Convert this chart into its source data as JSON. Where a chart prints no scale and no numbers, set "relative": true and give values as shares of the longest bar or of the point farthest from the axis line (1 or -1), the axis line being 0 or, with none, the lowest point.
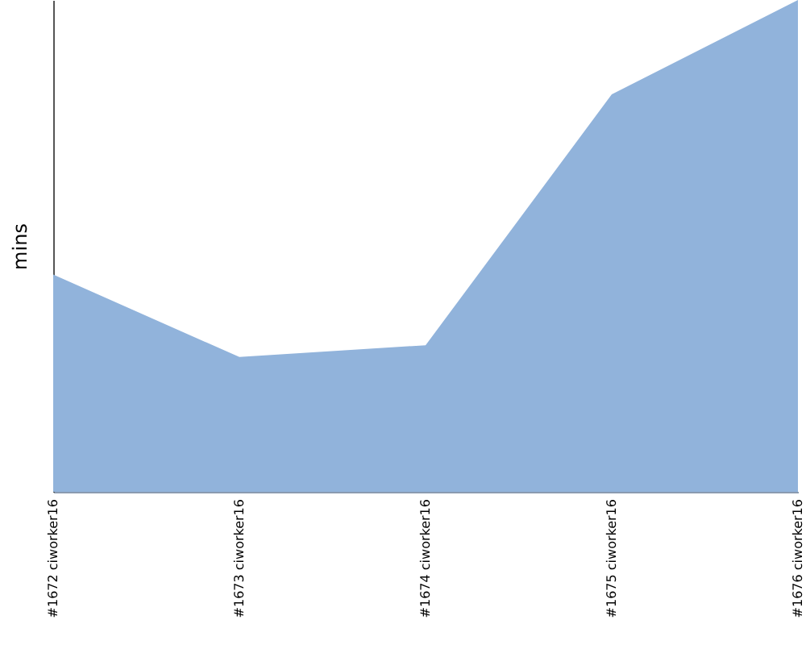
{
  "chart_data": {
    "type": "area",
    "ylabel": "mins",
    "relative": true,
    "categories": [
      "#1672 ciworker16",
      "#1673 ciworker16",
      "#1674 ciworker16",
      "#1675 ciworker16",
      "#1676 ciworker16"
    ],
    "series": [
      {
        "color": "#91b3db",
        "values": [
          0.442,
          0.274,
          0.298,
          0.808,
          1
        ]
      }
    ]
  }
}
